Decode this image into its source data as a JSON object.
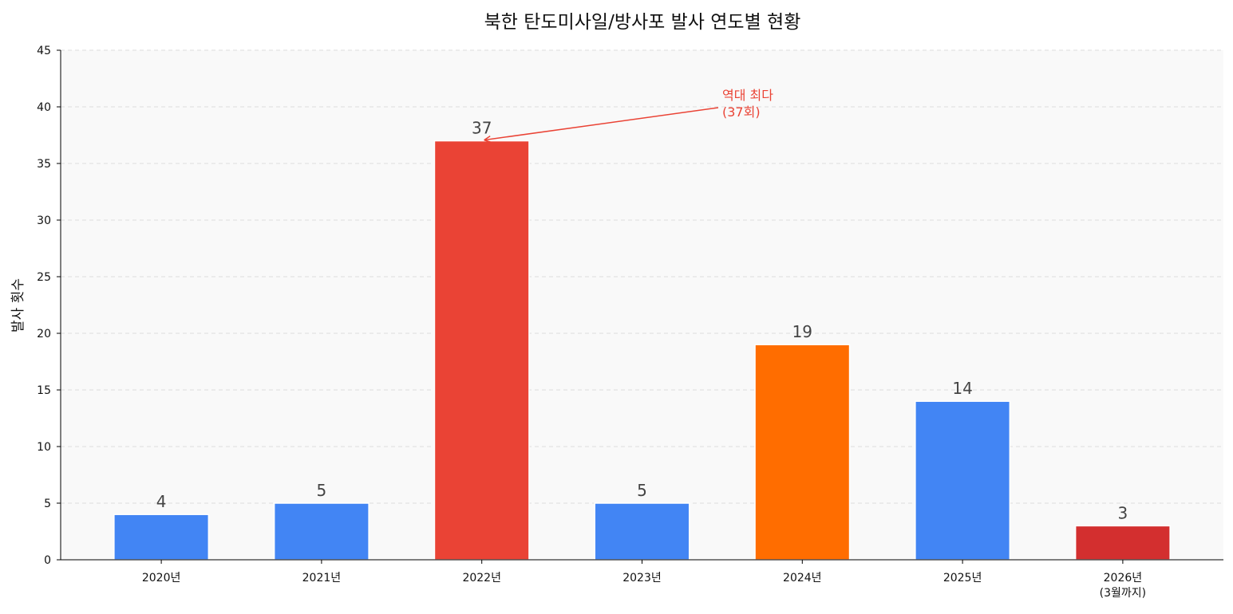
{
  "chart_data": {
    "type": "bar",
    "title": "북한 탄도미사일/방사포 발사 연도별 현황",
    "xlabel": "",
    "ylabel": "발사 횟수",
    "ylim": [
      0,
      45
    ],
    "yticks": [
      0,
      5,
      10,
      15,
      20,
      25,
      30,
      35,
      40,
      45
    ],
    "grid": "y-dashed",
    "categories": [
      [
        "2020년"
      ],
      [
        "2021년"
      ],
      [
        "2022년"
      ],
      [
        "2023년"
      ],
      [
        "2024년"
      ],
      [
        "2025년"
      ],
      [
        "2026년",
        "(3월까지)"
      ]
    ],
    "values": [
      4,
      5,
      37,
      5,
      19,
      14,
      3
    ],
    "colors": [
      "#4285F4",
      "#4285F4",
      "#EA4335",
      "#4285F4",
      "#FF6D00",
      "#4285F4",
      "#D32F2F"
    ],
    "annotation": {
      "lines": [
        "역대 최다",
        "(37회)"
      ],
      "target_category_index": 2,
      "target_value": 37,
      "color": "#EA4335"
    },
    "background": "#F9F9F9"
  }
}
